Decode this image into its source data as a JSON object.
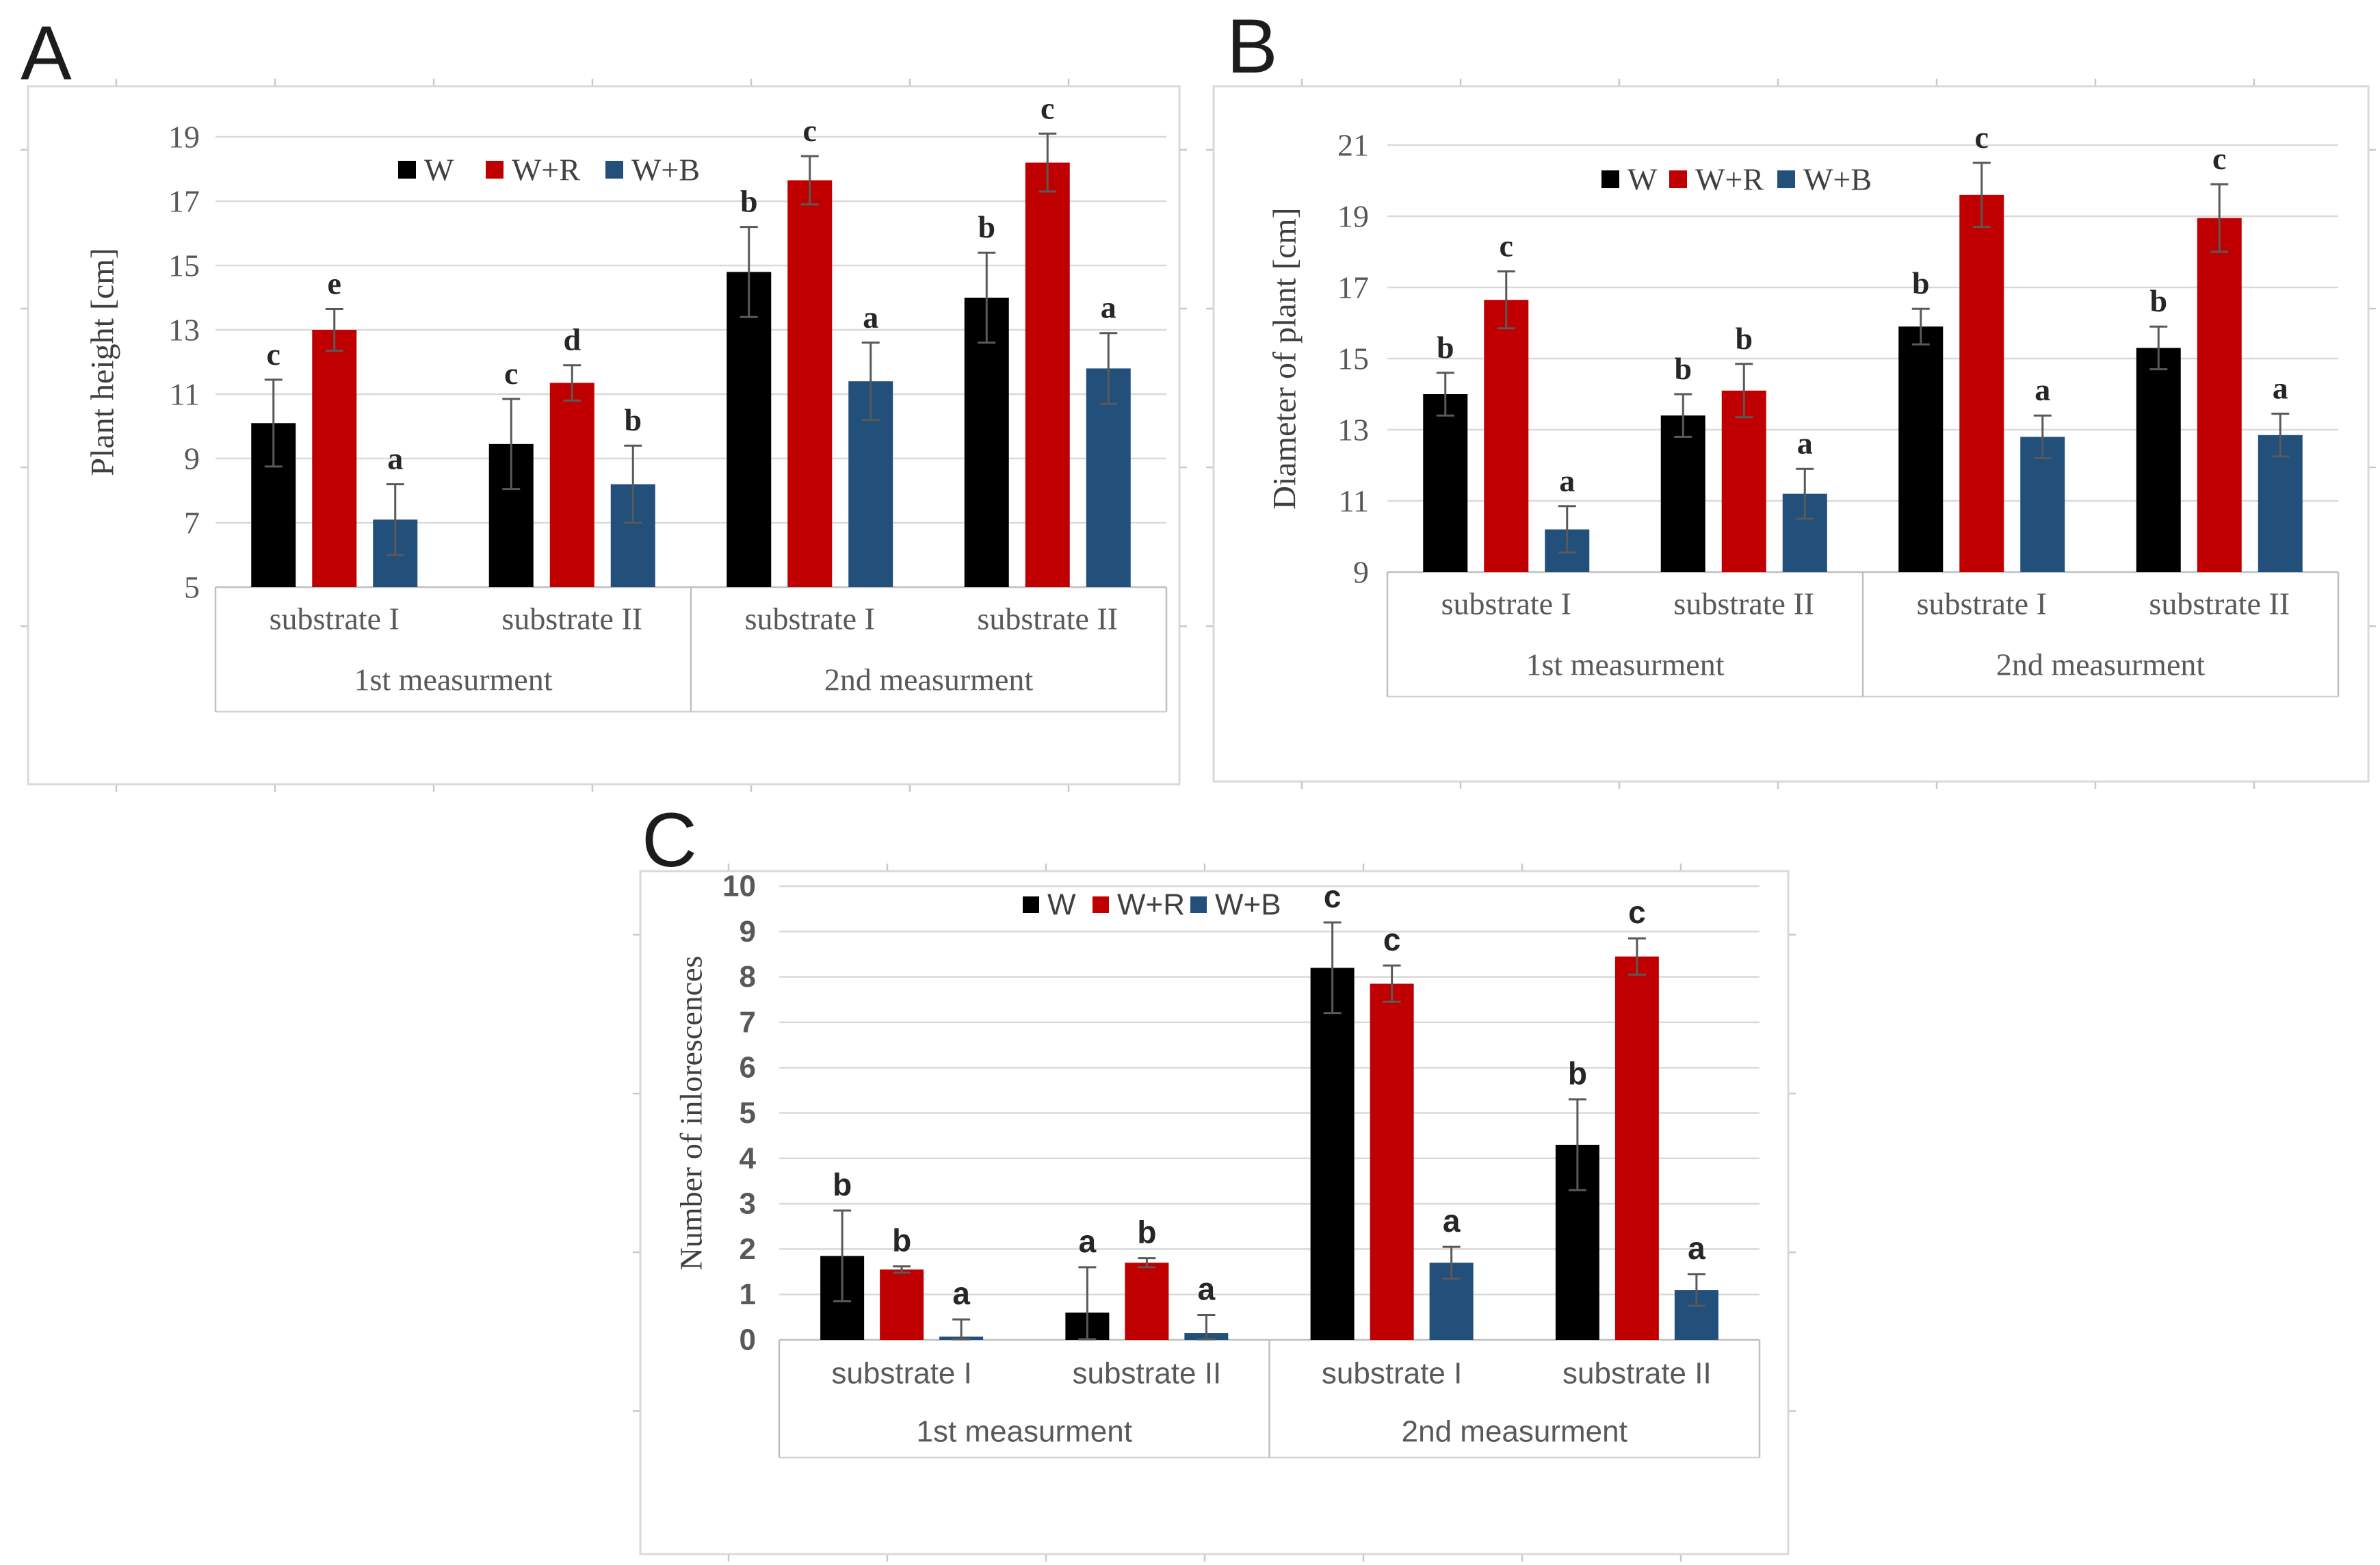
{
  "figure": {
    "background": "#ffffff",
    "panel_labels": [
      "A",
      "B",
      "C"
    ]
  },
  "colors": {
    "series_black": "#000000",
    "series_red": "#c00000",
    "series_blue": "#234f7b",
    "gridline": "#d9d9d9",
    "axis_line": "#bfbfbf",
    "tick_text": "#595959",
    "letter_text": "#262626",
    "error_bar": "#595959",
    "panel_border": "#d9d9d9"
  },
  "chart_data": [
    {
      "panel": "A",
      "type": "bar",
      "ylabel": "Plant height [cm]",
      "ymin": 5,
      "ymax": 19,
      "ytick_step": 2,
      "yticks": [
        5,
        7,
        9,
        11,
        13,
        15,
        17,
        19
      ],
      "grid": true,
      "legend_position": "top",
      "legend": [
        "W",
        "W+R",
        "W+B"
      ],
      "categories": [
        "substrate I",
        "substrate II",
        "substrate I",
        "substrate II"
      ],
      "group_headers": [
        "1st measurment",
        "2nd measurment"
      ],
      "series": [
        {
          "name": "W",
          "color": "#000000",
          "values": [
            10.1,
            9.45,
            14.8,
            14.0
          ],
          "errors": [
            1.35,
            1.4,
            1.4,
            1.4
          ],
          "letters": [
            "c",
            "c",
            "b",
            "b"
          ]
        },
        {
          "name": "W+R",
          "color": "#c00000",
          "values": [
            13.0,
            11.35,
            17.65,
            18.2
          ],
          "errors": [
            0.65,
            0.55,
            0.75,
            0.9
          ],
          "letters": [
            "e",
            "d",
            "c",
            "c"
          ]
        },
        {
          "name": "W+B",
          "color": "#234f7b",
          "values": [
            7.1,
            8.2,
            11.4,
            11.8
          ],
          "errors": [
            1.1,
            1.2,
            1.2,
            1.1
          ],
          "letters": [
            "a",
            "b",
            "a",
            "a"
          ]
        }
      ]
    },
    {
      "panel": "B",
      "type": "bar",
      "ylabel": "Diameter of plant [cm]",
      "ymin": 9,
      "ymax": 21,
      "ytick_step": 2,
      "yticks": [
        9,
        11,
        13,
        15,
        17,
        19,
        21
      ],
      "grid": true,
      "legend_position": "top",
      "legend": [
        "W",
        "W+R",
        "W+B"
      ],
      "categories": [
        "substrate I",
        "substrate II",
        "substrate I",
        "substrate II"
      ],
      "group_headers": [
        "1st measurment",
        "2nd measurment"
      ],
      "series": [
        {
          "name": "W",
          "color": "#000000",
          "values": [
            14.0,
            13.4,
            15.9,
            15.3
          ],
          "errors": [
            0.6,
            0.6,
            0.5,
            0.6
          ],
          "letters": [
            "b",
            "b",
            "b",
            "b"
          ]
        },
        {
          "name": "W+R",
          "color": "#c00000",
          "values": [
            16.65,
            14.1,
            19.6,
            18.95
          ],
          "errors": [
            0.8,
            0.75,
            0.9,
            0.95
          ],
          "letters": [
            "c",
            "b",
            "c",
            "c"
          ]
        },
        {
          "name": "W+B",
          "color": "#234f7b",
          "values": [
            10.2,
            11.2,
            12.8,
            12.85
          ],
          "errors": [
            0.65,
            0.7,
            0.6,
            0.6
          ],
          "letters": [
            "a",
            "a",
            "a",
            "a"
          ]
        }
      ]
    },
    {
      "panel": "C",
      "type": "bar",
      "ylabel": "Number of inlorescences",
      "ymin": 0,
      "ymax": 10,
      "ytick_step": 1,
      "yticks": [
        0,
        1,
        2,
        3,
        4,
        5,
        6,
        7,
        8,
        9,
        10
      ],
      "grid": true,
      "legend_position": "top",
      "legend": [
        "W",
        "W+R",
        "W+B"
      ],
      "categories": [
        "substrate I",
        "substrate II",
        "substrate I",
        "substrate II"
      ],
      "group_headers": [
        "1st measurment",
        "2nd measurment"
      ],
      "series": [
        {
          "name": "W",
          "color": "#000000",
          "values": [
            1.85,
            0.6,
            8.2,
            4.3
          ],
          "errors": [
            1.0,
            1.0,
            1.0,
            1.0
          ],
          "letters": [
            "b",
            "a",
            "c",
            "b"
          ]
        },
        {
          "name": "W+R",
          "color": "#c00000",
          "values": [
            1.55,
            1.7,
            7.85,
            8.45
          ],
          "errors": [
            0.07,
            0.1,
            0.4,
            0.4
          ],
          "letters": [
            "b",
            "b",
            "c",
            "c"
          ]
        },
        {
          "name": "W+B",
          "color": "#234f7b",
          "values": [
            0.07,
            0.15,
            1.7,
            1.1
          ],
          "errors": [
            0.38,
            0.4,
            0.35,
            0.35
          ],
          "letters": [
            "a",
            "a",
            "a",
            "a"
          ]
        }
      ]
    }
  ]
}
